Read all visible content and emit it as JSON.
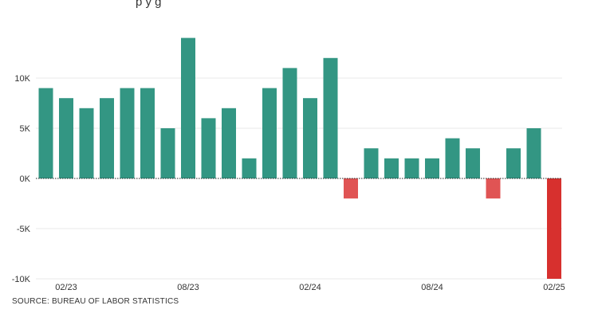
{
  "top_partial_text": "p                                                        y                   g",
  "chart_data": {
    "type": "bar",
    "categories": [
      "01/23",
      "02/23",
      "03/23",
      "04/23",
      "05/23",
      "06/23",
      "07/23",
      "08/23",
      "09/23",
      "10/23",
      "11/23",
      "12/23",
      "01/24",
      "02/24",
      "03/24",
      "04/24",
      "05/24",
      "06/24",
      "07/24",
      "08/24",
      "09/24",
      "10/24",
      "11/24",
      "12/24",
      "01/25",
      "02/25"
    ],
    "values": [
      9000,
      8000,
      7000,
      8000,
      9000,
      9000,
      5000,
      14000,
      6000,
      7000,
      2000,
      9000,
      11000,
      8000,
      12000,
      -2000,
      3000,
      2000,
      2000,
      2000,
      4000,
      3000,
      -2000,
      3000,
      5000,
      -10000
    ],
    "x_tick_labels": [
      "02/23",
      "08/23",
      "02/24",
      "08/24",
      "02/25"
    ],
    "x_tick_categories": [
      "02/23",
      "08/23",
      "02/24",
      "08/24",
      "02/25"
    ],
    "y_ticks": [
      10000,
      5000,
      0,
      -5000,
      -10000
    ],
    "y_tick_labels": [
      "10K",
      "5K",
      "0K",
      "-5K",
      "-10K"
    ],
    "ylim": [
      -10000,
      14000
    ],
    "colors": {
      "positive": "#339683",
      "negative": "#e05454",
      "latest_negative": "#d7302e"
    },
    "grid": true,
    "source": "SOURCE: BUREAU OF LABOR STATISTICS"
  }
}
